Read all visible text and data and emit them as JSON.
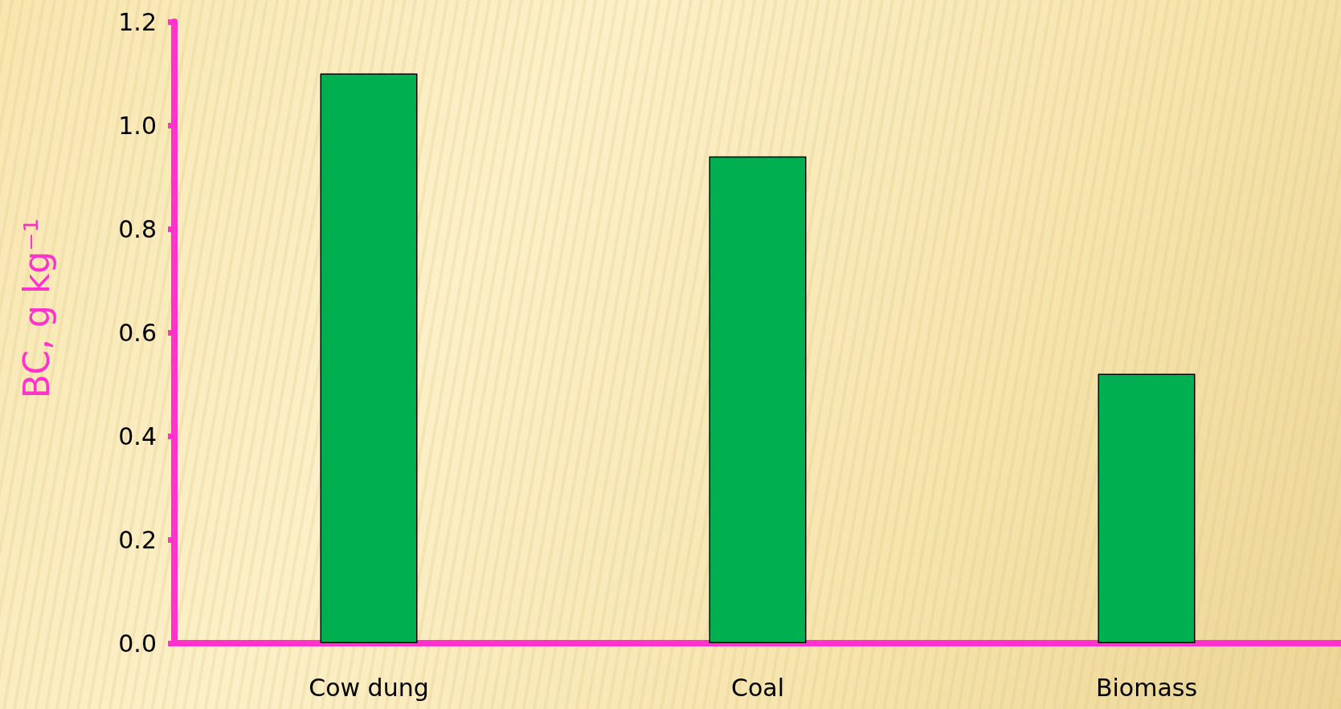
{
  "chart_data": {
    "type": "bar",
    "ylabel": "BC, g kg⁻¹",
    "categories": [
      "Cow dung",
      "Coal",
      "Biomass"
    ],
    "values": [
      1.1,
      0.94,
      0.52
    ],
    "color": "#00b050",
    "ylim": [
      0,
      1.2
    ],
    "yticks": [
      {
        "value": 0,
        "label": "0.0"
      },
      {
        "value": 0.2,
        "label": "0.2"
      },
      {
        "value": 0.4,
        "label": "0.4"
      },
      {
        "value": 0.6,
        "label": "0.6"
      },
      {
        "value": 0.8,
        "label": "0.8"
      },
      {
        "value": 1.0,
        "label": "1.0"
      },
      {
        "value": 1.2,
        "label": "1.2"
      }
    ]
  }
}
